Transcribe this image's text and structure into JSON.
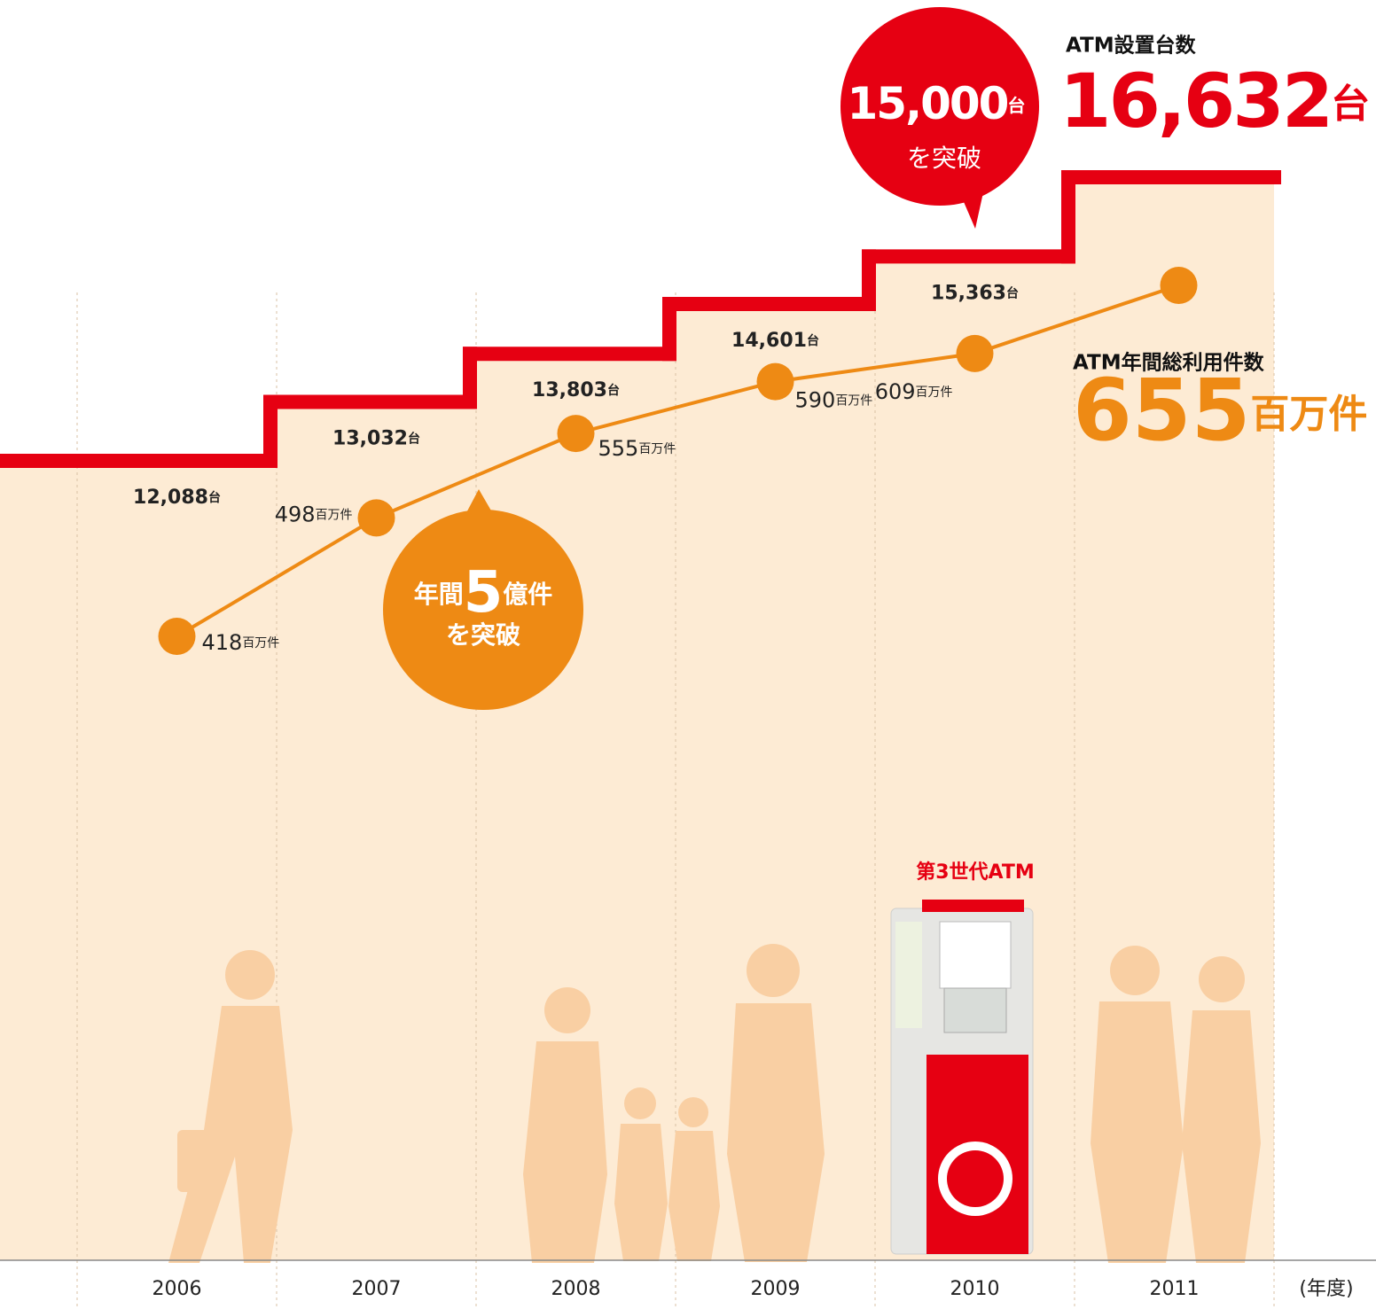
{
  "chart_data": {
    "type": "step-line",
    "categories": [
      "2006",
      "2007",
      "2008",
      "2009",
      "2010",
      "2011"
    ],
    "x_label": "(年度)",
    "series": [
      {
        "name": "ATM設置台数",
        "color": "#e60012",
        "unit": "台",
        "values": [
          12088,
          13032,
          13803,
          14601,
          15363,
          16632
        ],
        "value_labels": [
          "12,088",
          "13,032",
          "13,803",
          "14,601",
          "15,363",
          "16,632"
        ]
      },
      {
        "name": "ATM年間総利用件数",
        "color": "#ee8a14",
        "unit": "百万件",
        "values": [
          418,
          498,
          555,
          590,
          609,
          655
        ]
      }
    ],
    "annotations": [
      {
        "value": "15,000",
        "unit": "台",
        "text": "を突破"
      },
      {
        "prefix": "年間",
        "value": "5",
        "unit": "億件",
        "text": "を突破"
      }
    ],
    "image_label": "第3世代ATM"
  }
}
